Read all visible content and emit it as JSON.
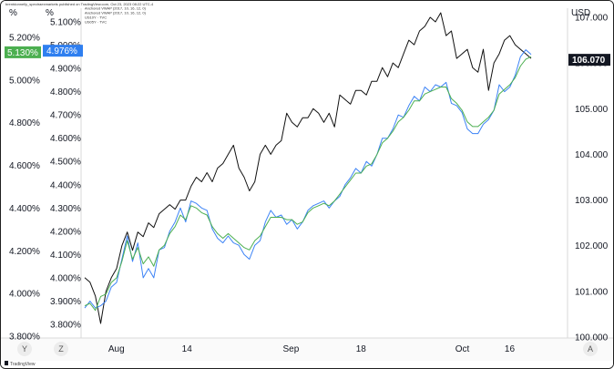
{
  "header": {
    "publisher_line": "brentdonnelly_spectraexmarkets published on TradingView.com, Oct 23, 2023 08:22 UTC-4",
    "legend_lines": [
      "Anchored VWAP (2017, 10, 16, 12, 0)",
      "Anchored VWAP (2017, 10, 16, 12, 0)",
      "US10Y · TVC",
      "US05Y · TVC"
    ]
  },
  "footer": {
    "brand": "TradingView"
  },
  "controls": {
    "left_button_1": "Y",
    "left_button_2": "Z",
    "right_button": "A"
  },
  "colors": {
    "black_series": "#111111",
    "blue_series": "#3b82f6",
    "green_series": "#4caf50",
    "green_tag": "#4caf50",
    "blue_tag": "#2f7ff0",
    "dark_tag": "#131722"
  },
  "chart_data": {
    "type": "line",
    "x_ticks": [
      "Aug",
      "14",
      "Sep",
      "18",
      "Oct",
      "16"
    ],
    "axes": {
      "left_outer": {
        "unit": "%",
        "ticks": [
          "5.200%",
          "5.000%",
          "4.800%",
          "4.600%",
          "4.400%",
          "4.200%",
          "4.000%",
          "3.800%"
        ],
        "ylim": [
          3.8,
          5.2
        ],
        "current_value": "5.130%"
      },
      "left_inner": {
        "unit": "%",
        "ticks": [
          "5.100%",
          "5.000%",
          "4.900%",
          "4.800%",
          "4.700%",
          "4.600%",
          "4.500%",
          "4.400%",
          "4.300%",
          "4.200%",
          "4.100%",
          "4.000%",
          "3.900%",
          "3.800%"
        ],
        "ylim": [
          3.8,
          5.1
        ],
        "current_value": "4.976%"
      },
      "right": {
        "unit": "USD",
        "ticks": [
          "107.000",
          "106.000",
          "105.000",
          "104.000",
          "103.000",
          "102.000",
          "101.000",
          "100.000"
        ],
        "ylim": [
          100.0,
          107.0
        ],
        "current_value": "106.070"
      }
    },
    "series": [
      {
        "axis": "right",
        "x": [
          0,
          1,
          2,
          3,
          4,
          5,
          6,
          7,
          8,
          9,
          10,
          11,
          12,
          13,
          14,
          15,
          16,
          17,
          18,
          19,
          20,
          21,
          22,
          23,
          24,
          25,
          26,
          27,
          28,
          29,
          30,
          31,
          32,
          33,
          34,
          35,
          36,
          37,
          38,
          39,
          40,
          41,
          42,
          43,
          44,
          45,
          46,
          47,
          48,
          49,
          50,
          51,
          52,
          53,
          54,
          55,
          56,
          57,
          58,
          59,
          60,
          61,
          62,
          63,
          64,
          65,
          66,
          67,
          68,
          69,
          70,
          71,
          72,
          73,
          74,
          75,
          76,
          77,
          78,
          79,
          80,
          81,
          82,
          83,
          84
        ],
        "values": [
          101.3,
          101.2,
          100.9,
          100.3,
          101.0,
          101.3,
          101.5,
          102.0,
          102.3,
          101.9,
          102.3,
          102.2,
          102.5,
          102.4,
          102.7,
          102.8,
          102.9,
          102.8,
          103.0,
          103.0,
          103.3,
          103.5,
          103.4,
          103.6,
          103.4,
          103.7,
          103.8,
          104.0,
          104.2,
          103.7,
          103.5,
          103.2,
          103.4,
          104.0,
          104.2,
          104.0,
          104.2,
          104.3,
          104.9,
          104.7,
          104.6,
          104.8,
          104.8,
          105.0,
          104.9,
          104.7,
          104.9,
          104.6,
          105.3,
          105.2,
          105.1,
          105.4,
          105.4,
          105.3,
          105.6,
          105.6,
          105.9,
          105.7,
          106.0,
          105.9,
          106.2,
          106.5,
          106.4,
          106.7,
          106.8,
          107.0,
          106.9,
          107.1,
          106.6,
          106.7,
          106.1,
          106.2,
          106.3,
          105.9,
          105.8,
          106.3,
          105.4,
          106.0,
          106.2,
          106.5,
          106.6,
          106.4,
          106.3,
          106.2,
          106.1
        ]
      },
      {
        "axis": "left_inner",
        "x": [
          0,
          1,
          2,
          3,
          4,
          5,
          6,
          7,
          8,
          9,
          10,
          11,
          12,
          13,
          14,
          15,
          16,
          17,
          18,
          19,
          20,
          21,
          22,
          23,
          24,
          25,
          26,
          27,
          28,
          29,
          30,
          31,
          32,
          33,
          34,
          35,
          36,
          37,
          38,
          39,
          40,
          41,
          42,
          43,
          44,
          45,
          46,
          47,
          48,
          49,
          50,
          51,
          52,
          53,
          54,
          55,
          56,
          57,
          58,
          59,
          60,
          61,
          62,
          63,
          64,
          65,
          66,
          67,
          68,
          69,
          70,
          71,
          72,
          73,
          74,
          75,
          76,
          77,
          78,
          79,
          80,
          81,
          82,
          83,
          84
        ],
        "values": [
          3.87,
          3.9,
          3.87,
          3.88,
          3.9,
          3.96,
          3.98,
          4.08,
          4.18,
          4.07,
          4.15,
          4.0,
          4.04,
          4.0,
          4.12,
          4.13,
          4.2,
          4.24,
          4.3,
          4.24,
          4.33,
          4.32,
          4.3,
          4.29,
          4.21,
          4.17,
          4.15,
          4.18,
          4.15,
          4.14,
          4.1,
          4.08,
          4.14,
          4.16,
          4.24,
          4.29,
          4.26,
          4.27,
          4.23,
          4.25,
          4.21,
          4.24,
          4.29,
          4.31,
          4.32,
          4.33,
          4.3,
          4.33,
          4.35,
          4.4,
          4.43,
          4.47,
          4.45,
          4.5,
          4.48,
          4.53,
          4.6,
          4.6,
          4.64,
          4.7,
          4.69,
          4.74,
          4.78,
          4.76,
          4.82,
          4.8,
          4.83,
          4.82,
          4.84,
          4.75,
          4.74,
          4.71,
          4.64,
          4.62,
          4.62,
          4.66,
          4.68,
          4.72,
          4.83,
          4.8,
          4.82,
          4.87,
          4.95,
          4.98,
          4.96
        ]
      },
      {
        "axis": "left_inner",
        "x": [
          0,
          1,
          2,
          3,
          4,
          5,
          6,
          7,
          8,
          9,
          10,
          11,
          12,
          13,
          14,
          15,
          16,
          17,
          18,
          19,
          20,
          21,
          22,
          23,
          24,
          25,
          26,
          27,
          28,
          29,
          30,
          31,
          32,
          33,
          34,
          35,
          36,
          37,
          38,
          39,
          40,
          41,
          42,
          43,
          44,
          45,
          46,
          47,
          48,
          49,
          50,
          51,
          52,
          53,
          54,
          55,
          56,
          57,
          58,
          59,
          60,
          61,
          62,
          63,
          64,
          65,
          66,
          67,
          68,
          69,
          70,
          71,
          72,
          73,
          74,
          75,
          76,
          77,
          78,
          79,
          80,
          81,
          82,
          83,
          84
        ],
        "values": [
          3.88,
          3.89,
          3.86,
          3.92,
          3.93,
          3.98,
          4.0,
          4.07,
          4.16,
          4.08,
          4.13,
          4.06,
          4.09,
          4.05,
          4.12,
          4.14,
          4.19,
          4.22,
          4.27,
          4.25,
          4.31,
          4.3,
          4.28,
          4.27,
          4.22,
          4.19,
          4.17,
          4.19,
          4.17,
          4.15,
          4.13,
          4.12,
          4.16,
          4.18,
          4.22,
          4.26,
          4.26,
          4.26,
          4.25,
          4.25,
          4.23,
          4.24,
          4.28,
          4.3,
          4.31,
          4.32,
          4.31,
          4.33,
          4.36,
          4.39,
          4.42,
          4.45,
          4.45,
          4.48,
          4.49,
          4.53,
          4.58,
          4.6,
          4.63,
          4.67,
          4.69,
          4.72,
          4.76,
          4.76,
          4.79,
          4.8,
          4.81,
          4.82,
          4.82,
          4.77,
          4.75,
          4.72,
          4.67,
          4.65,
          4.65,
          4.67,
          4.69,
          4.72,
          4.79,
          4.81,
          4.83,
          4.86,
          4.91,
          4.94,
          4.95
        ]
      }
    ]
  }
}
